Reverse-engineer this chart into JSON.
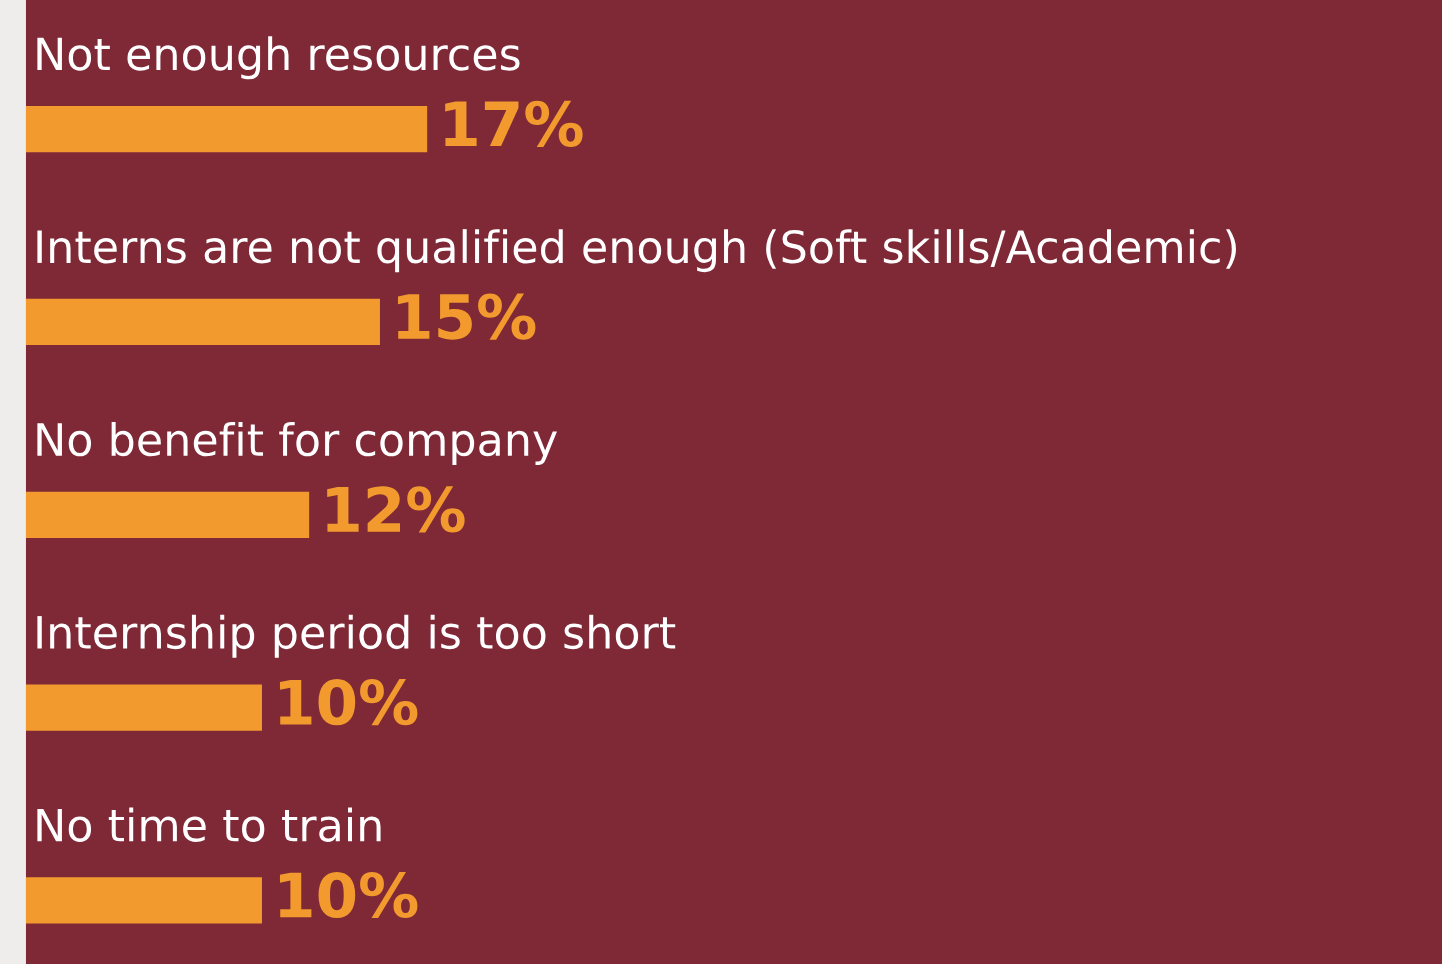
{
  "chart_data": {
    "type": "bar",
    "orientation": "horizontal",
    "categories": [
      "Not enough resources",
      "Interns are not qualified enough (Soft skills/Academic)",
      "No benefit for company",
      "Internship period is too short",
      "No time to train"
    ],
    "values": [
      17,
      15,
      12,
      10,
      10
    ],
    "value_labels": [
      "17%",
      "15%",
      "12%",
      "10%",
      "10%"
    ],
    "color": "#f39a2e",
    "xlim": [
      0,
      60
    ]
  }
}
